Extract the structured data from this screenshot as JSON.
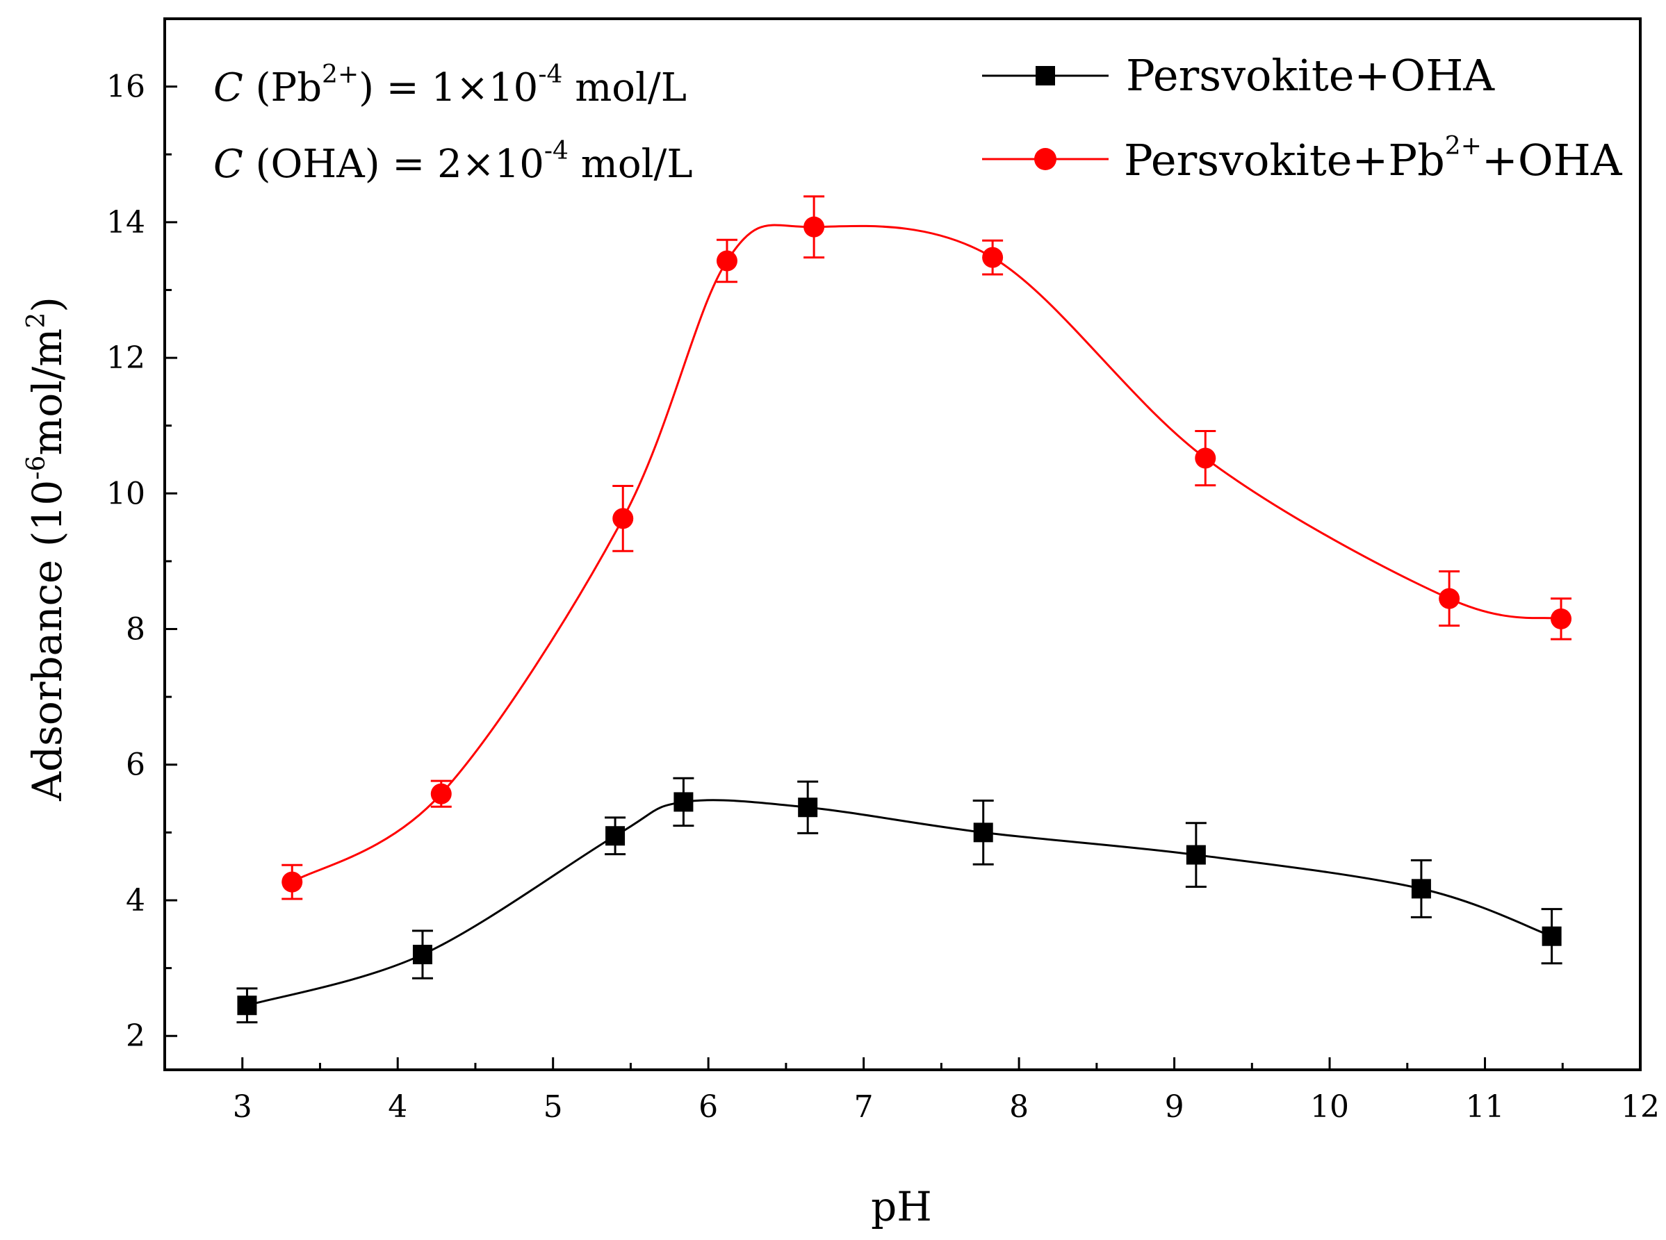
{
  "chart_data": {
    "type": "line",
    "xlabel": "pH",
    "ylabel": {
      "prefix": "Adsorbance (10",
      "sup1": "-6",
      "middle": "mol/m",
      "sup2": "2",
      "suffix": ")"
    },
    "xlim": [
      2.5,
      12
    ],
    "ylim": [
      1.5,
      17
    ],
    "xticks": [
      3,
      4,
      5,
      6,
      7,
      8,
      9,
      10,
      11,
      12
    ],
    "yticks": [
      2,
      4,
      6,
      8,
      10,
      12,
      14,
      16
    ],
    "grid": false,
    "legend_position": "top-right",
    "annotations": [
      {
        "var": "C",
        "pre": " (Pb",
        "sup1": "2+",
        "mid": ") = 1×10",
        "sup2": "-4",
        "post": " mol/L"
      },
      {
        "var": "C",
        "pre": " (OHA) = 2×10",
        "sup1": "-4",
        "mid": " mol/L",
        "sup2": "",
        "post": ""
      }
    ],
    "series": [
      {
        "legend": {
          "base": "Persvokite+OHA",
          "sup": "",
          "tail": ""
        },
        "color": "#000000",
        "marker": "square",
        "points": [
          {
            "x": 3.03,
            "y": 2.45,
            "err": 0.25
          },
          {
            "x": 4.16,
            "y": 3.2,
            "err": 0.35
          },
          {
            "x": 5.4,
            "y": 4.95,
            "err": 0.27
          },
          {
            "x": 5.84,
            "y": 5.45,
            "err": 0.35
          },
          {
            "x": 6.64,
            "y": 5.37,
            "err": 0.38
          },
          {
            "x": 7.77,
            "y": 5.0,
            "err": 0.47
          },
          {
            "x": 9.14,
            "y": 4.67,
            "err": 0.47
          },
          {
            "x": 10.59,
            "y": 4.17,
            "err": 0.42
          },
          {
            "x": 11.43,
            "y": 3.47,
            "err": 0.4
          }
        ]
      },
      {
        "legend": {
          "base": "Persvokite+Pb",
          "sup": "2+",
          "tail": "+OHA"
        },
        "color": "#ff0000",
        "marker": "circle",
        "points": [
          {
            "x": 3.32,
            "y": 4.27,
            "err": 0.25
          },
          {
            "x": 4.28,
            "y": 5.57,
            "err": 0.19
          },
          {
            "x": 5.45,
            "y": 9.63,
            "err": 0.48
          },
          {
            "x": 6.12,
            "y": 13.43,
            "err": 0.31
          },
          {
            "x": 6.68,
            "y": 13.93,
            "err": 0.45
          },
          {
            "x": 7.83,
            "y": 13.48,
            "err": 0.25
          },
          {
            "x": 9.2,
            "y": 10.52,
            "err": 0.4
          },
          {
            "x": 10.77,
            "y": 8.45,
            "err": 0.4
          },
          {
            "x": 11.49,
            "y": 8.15,
            "err": 0.3
          }
        ]
      }
    ]
  }
}
